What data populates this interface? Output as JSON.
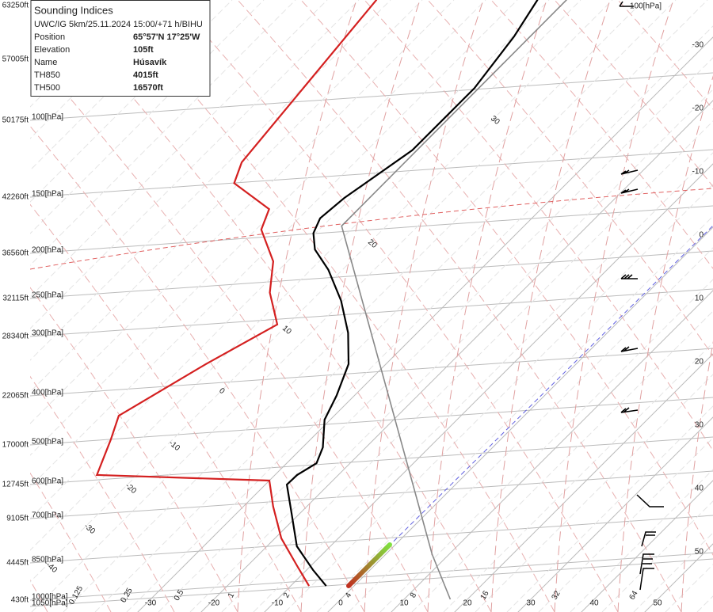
{
  "info_box": {
    "title": "Sounding Indices",
    "subtitle": "UWC/IG 5km/25.11.2024 15:00/+71 h/BIHU",
    "rows": [
      [
        "Position",
        "65°57'N 17°25'W"
      ],
      [
        "Elevation",
        "105ft"
      ],
      [
        "Name",
        "Húsavík"
      ],
      [
        "TH850",
        "4015ft"
      ],
      [
        "TH500",
        "16570ft"
      ]
    ]
  },
  "chart_data": {
    "type": "skewt",
    "levels": [
      {
        "altitude": "63250ft"
      },
      {
        "altitude": "57005ft"
      },
      {
        "altitude": "50175ft",
        "pressure": "100[hPa]"
      },
      {
        "altitude": "42260ft",
        "pressure": "150[hPa]"
      },
      {
        "altitude": "36560ft",
        "pressure": "200[hPa]"
      },
      {
        "altitude": "32115ft",
        "pressure": "250[hPa]"
      },
      {
        "altitude": "28340ft",
        "pressure": "300[hPa]"
      },
      {
        "altitude": "22065ft",
        "pressure": "400[hPa]"
      },
      {
        "altitude": "17000ft",
        "pressure": "500[hPa]"
      },
      {
        "altitude": "12745ft",
        "pressure": "600[hPa]"
      },
      {
        "altitude": "9105ft",
        "pressure": "700[hPa]"
      },
      {
        "altitude": "4445ft",
        "pressure": "850[hPa]"
      },
      {
        "altitude": "430ft",
        "pressure": "1000[hPa]"
      },
      {
        "pressure": "1050[hPa]"
      }
    ],
    "top_right_label": "100[hPa]",
    "xticks": [
      -30,
      -20,
      -10,
      0,
      10,
      20,
      30,
      40,
      50
    ],
    "mixing_ratio_labels": [
      "0.125",
      "0.25",
      "0.5",
      "1",
      "2",
      "4",
      "8",
      "16",
      "32",
      "64"
    ],
    "adiabat_labels": [
      "30",
      "20",
      "10",
      "0",
      "-10",
      "-20",
      "-30",
      "-40"
    ],
    "series": [
      {
        "color": "#d42020",
        "pressure": [
          938,
          853,
          747,
          642,
          567,
          552,
          466,
          416,
          325,
          269,
          231,
          199,
          171,
          155,
          137,
          124,
          57
        ],
        "values": [
          -7.1,
          -12.1,
          -19,
          -25.3,
          -30,
          -58.1,
          -61.5,
          -64,
          -58.4,
          -53.4,
          -59.6,
          -64,
          -70.9,
          -72.9,
          -82.5,
          -84.6,
          -89
        ]
      },
      {
        "color": "#000000",
        "pressure": [
          938,
          869,
          776,
          667,
          578,
          552,
          522,
          484,
          424,
          378,
          325,
          280,
          240,
          207,
          188,
          174,
          162,
          147,
          134,
          117,
          101,
          87,
          68,
          57
        ],
        "values": [
          -4.4,
          -9,
          -15.3,
          -21.1,
          -26.6,
          -26.5,
          -25.3,
          -26.8,
          -30.9,
          -32.8,
          -35.9,
          -40.9,
          -47.1,
          -54,
          -59.3,
          -62.1,
          -63.4,
          -62.8,
          -61.5,
          -59.6,
          -59.6,
          -59.6,
          -61.5,
          -63.6
        ]
      },
      {
        "color": "#888888",
        "pressure": [
          1000,
          806,
          378,
          168,
          57
        ],
        "values": [
          17.3,
          7.3,
          -24.6,
          -58.8,
          -59
        ]
      }
    ]
  }
}
